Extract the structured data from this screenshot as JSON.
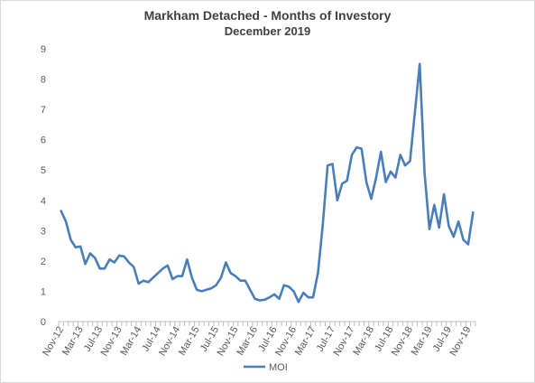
{
  "chart_data": {
    "type": "line",
    "title": "Markham Detached - Months of Investory",
    "subtitle": "December 2019",
    "xlabel": "",
    "ylabel": "",
    "ylim": [
      0,
      9
    ],
    "yticks": [
      0,
      1,
      2,
      3,
      4,
      5,
      6,
      7,
      8,
      9
    ],
    "grid": false,
    "legend": "bottom",
    "color": "#4a7ebb",
    "x_tick_labels": [
      "Nov-12",
      "Mar-13",
      "Jul-13",
      "Nov-13",
      "Mar-14",
      "Jul-14",
      "Nov-14",
      "Mar-15",
      "Jul-15",
      "Nov-15",
      "Mar-16",
      "Jul-16",
      "Nov-16",
      "Mar-17",
      "Jul-17",
      "Nov-17",
      "Mar-18",
      "Jul-18",
      "Nov-18",
      "Mar-19",
      "Jul-19",
      "Nov-19"
    ],
    "series": [
      {
        "name": "MOI",
        "start": "Nov-12",
        "values": [
          3.65,
          3.3,
          2.7,
          2.45,
          2.48,
          1.9,
          2.25,
          2.1,
          1.75,
          1.75,
          2.05,
          1.95,
          2.18,
          2.15,
          1.95,
          1.8,
          1.25,
          1.35,
          1.3,
          1.45,
          1.6,
          1.75,
          1.85,
          1.4,
          1.5,
          1.5,
          2.05,
          1.45,
          1.05,
          1.0,
          1.05,
          1.1,
          1.2,
          1.45,
          1.95,
          1.6,
          1.5,
          1.35,
          1.35,
          1.05,
          0.75,
          0.7,
          0.72,
          0.8,
          0.9,
          0.75,
          1.2,
          1.15,
          1.0,
          0.65,
          0.95,
          0.8,
          0.8,
          1.6,
          3.2,
          5.15,
          5.2,
          4.0,
          4.55,
          4.65,
          5.5,
          5.75,
          5.7,
          4.6,
          4.05,
          4.75,
          5.6,
          4.6,
          4.95,
          4.75,
          5.5,
          5.15,
          5.3,
          6.9,
          8.5,
          4.9,
          3.05,
          3.85,
          3.1,
          4.2,
          3.15,
          2.8,
          3.3,
          2.7,
          2.55,
          3.6
        ]
      }
    ]
  }
}
